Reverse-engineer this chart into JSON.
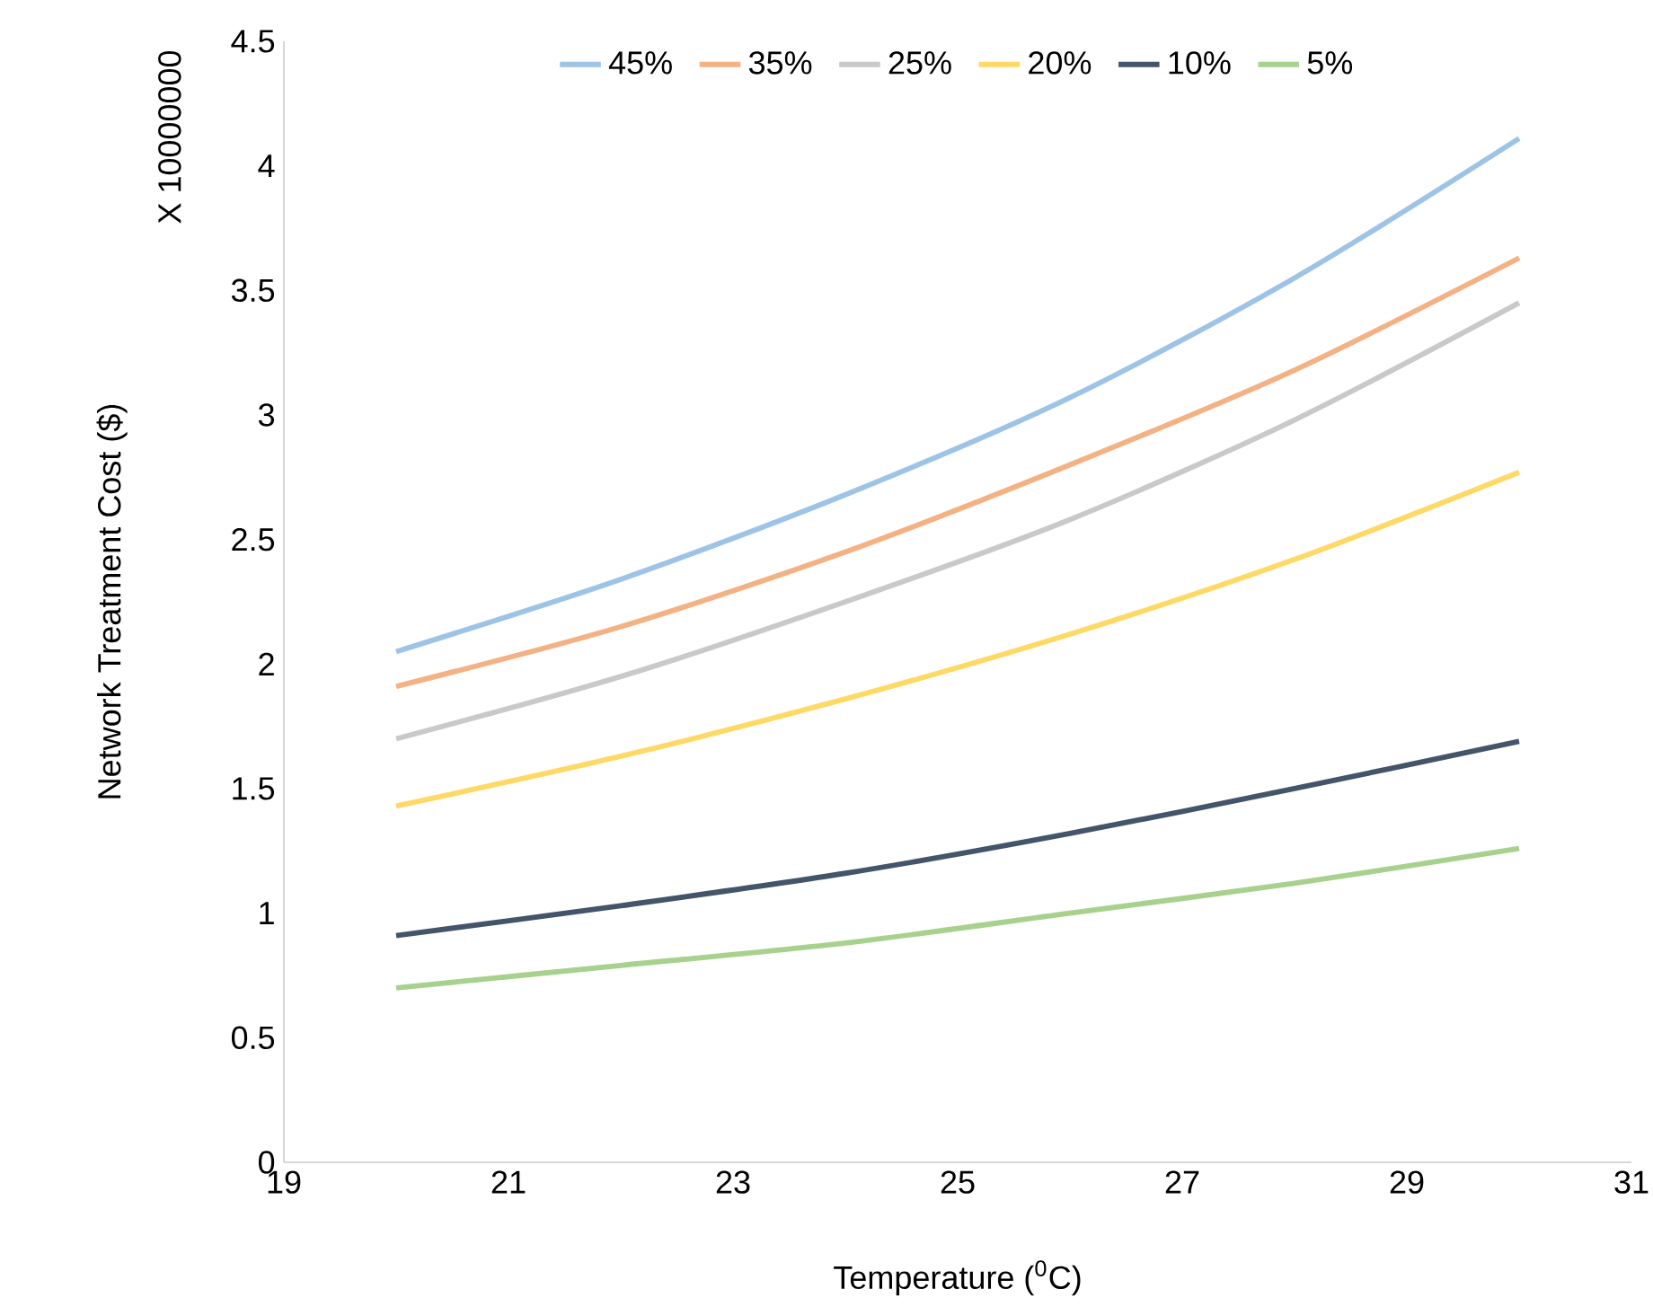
{
  "chart_data": {
    "type": "line",
    "xlabel": "Temperature ($^{0}$C)",
    "ylabel": "Network Treatment Cost ($)",
    "annotations": [
      "X 10000000"
    ],
    "x": [
      20,
      22,
      24,
      26,
      28,
      30
    ],
    "series": [
      {
        "name": "45%",
        "color": "#9dc3e6",
        "values": [
          2.05,
          2.34,
          2.68,
          3.07,
          3.55,
          4.11
        ]
      },
      {
        "name": "35%",
        "color": "#f4b183",
        "values": [
          1.91,
          2.15,
          2.45,
          2.8,
          3.18,
          3.63
        ]
      },
      {
        "name": "25%",
        "color": "#c9c9c9",
        "values": [
          1.7,
          1.95,
          2.25,
          2.58,
          2.98,
          3.45
        ]
      },
      {
        "name": "20%",
        "color": "#ffd966",
        "values": [
          1.43,
          1.63,
          1.86,
          2.12,
          2.42,
          2.77
        ]
      },
      {
        "name": "10%",
        "color": "#44546a",
        "values": [
          0.91,
          1.03,
          1.16,
          1.32,
          1.5,
          1.69
        ]
      },
      {
        "name": "5%",
        "color": "#a9d18e",
        "values": [
          0.7,
          0.79,
          0.88,
          1.0,
          1.12,
          1.26
        ]
      }
    ],
    "xlim": [
      19,
      31
    ],
    "xticks": [
      19,
      21,
      23,
      25,
      27,
      29,
      31
    ],
    "ylim": [
      0,
      4.5
    ],
    "yticks": [
      0,
      0.5,
      1,
      1.5,
      2,
      2.5,
      3,
      3.5,
      4,
      4.5
    ],
    "legend": "top",
    "grid": false,
    "marker": "none",
    "line_style": "solid"
  }
}
